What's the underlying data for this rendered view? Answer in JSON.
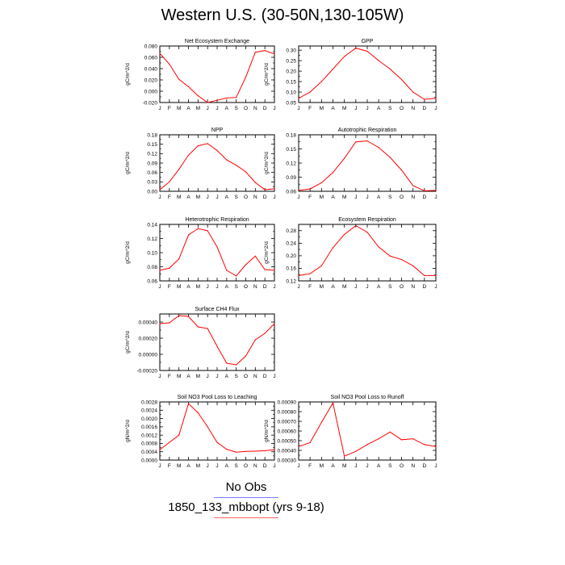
{
  "title": "Western U.S. (30-50N,130-105W)",
  "legend": {
    "obs_label": "No Obs",
    "run_label": "1850_133_mbbopt (yrs 9-18)",
    "obs_color": "#7a7aff",
    "run_color": "#ff0000"
  },
  "chart_data": [
    {
      "type": "line",
      "title": "Net Ecosystem Exchange",
      "ylabel": "gC/m^2/d",
      "categories": [
        "J",
        "F",
        "M",
        "A",
        "M",
        "J",
        "J",
        "A",
        "S",
        "O",
        "N",
        "D",
        "J"
      ],
      "ylim": [
        -0.02,
        0.08
      ],
      "yticks": [
        "-0.020",
        "0.000",
        "0.020",
        "0.040",
        "0.060",
        "0.080"
      ],
      "series": [
        {
          "values": [
            0.067,
            0.048,
            0.021,
            0.008,
            -0.008,
            -0.02,
            -0.016,
            -0.012,
            -0.011,
            0.025,
            0.069,
            0.072,
            0.066
          ]
        }
      ]
    },
    {
      "type": "line",
      "title": "GPP",
      "ylabel": "gC/m^2/d",
      "categories": [
        "J",
        "F",
        "M",
        "A",
        "M",
        "J",
        "J",
        "A",
        "S",
        "O",
        "N",
        "D",
        "J"
      ],
      "ylim": [
        0.05,
        0.32
      ],
      "yticks": [
        "0.05",
        "0.10",
        "0.15",
        "0.20",
        "0.25",
        "0.30"
      ],
      "series": [
        {
          "values": [
            0.07,
            0.1,
            0.15,
            0.21,
            0.27,
            0.31,
            0.295,
            0.25,
            0.21,
            0.16,
            0.1,
            0.065,
            0.07
          ]
        }
      ]
    },
    {
      "type": "line",
      "title": "NPP",
      "ylabel": "gC/m^2/d",
      "categories": [
        "J",
        "F",
        "M",
        "A",
        "M",
        "J",
        "J",
        "A",
        "S",
        "O",
        "N",
        "D",
        "J"
      ],
      "ylim": [
        0.0,
        0.18
      ],
      "yticks": [
        "0.00",
        "0.03",
        "0.06",
        "0.09",
        "0.12",
        "0.15",
        "0.18"
      ],
      "series": [
        {
          "values": [
            0.005,
            0.03,
            0.07,
            0.115,
            0.145,
            0.152,
            0.13,
            0.1,
            0.083,
            0.062,
            0.028,
            0.005,
            0.008
          ]
        }
      ]
    },
    {
      "type": "line",
      "title": "Autotrophic Respiration",
      "ylabel": "gC/m^2/d",
      "categories": [
        "J",
        "F",
        "M",
        "A",
        "M",
        "J",
        "J",
        "A",
        "S",
        "O",
        "N",
        "D",
        "J"
      ],
      "ylim": [
        0.06,
        0.18
      ],
      "yticks": [
        "0.06",
        "0.09",
        "0.12",
        "0.15",
        "0.18"
      ],
      "series": [
        {
          "values": [
            0.062,
            0.065,
            0.078,
            0.1,
            0.13,
            0.165,
            0.167,
            0.153,
            0.132,
            0.105,
            0.072,
            0.061,
            0.062
          ]
        }
      ]
    },
    {
      "type": "line",
      "title": "Heterotrophic Respiration",
      "ylabel": "gC/m^2/d",
      "categories": [
        "J",
        "F",
        "M",
        "A",
        "M",
        "J",
        "J",
        "A",
        "S",
        "O",
        "N",
        "D",
        "J"
      ],
      "ylim": [
        0.06,
        0.14
      ],
      "yticks": [
        "0.06",
        "0.08",
        "0.10",
        "0.12",
        "0.14"
      ],
      "series": [
        {
          "values": [
            0.075,
            0.078,
            0.091,
            0.125,
            0.134,
            0.131,
            0.108,
            0.075,
            0.067,
            0.083,
            0.095,
            0.076,
            0.075
          ]
        }
      ]
    },
    {
      "type": "line",
      "title": "Ecosystem Respiration",
      "ylabel": "gC/m^2/d",
      "categories": [
        "J",
        "F",
        "M",
        "A",
        "M",
        "J",
        "J",
        "A",
        "S",
        "O",
        "N",
        "D",
        "J"
      ],
      "ylim": [
        0.12,
        0.3
      ],
      "yticks": [
        "0.12",
        "0.16",
        "0.20",
        "0.24",
        "0.28"
      ],
      "series": [
        {
          "values": [
            0.137,
            0.143,
            0.168,
            0.226,
            0.268,
            0.296,
            0.275,
            0.228,
            0.199,
            0.188,
            0.168,
            0.137,
            0.137
          ]
        }
      ]
    },
    {
      "type": "line",
      "title": "Surface CH4 Flux",
      "ylabel": "gC/m^2/d",
      "categories": [
        "J",
        "F",
        "M",
        "A",
        "M",
        "J",
        "J",
        "A",
        "S",
        "O",
        "N",
        "D",
        "J"
      ],
      "ylim": [
        -0.0002,
        0.0005
      ],
      "yticks": [
        "-0.00020",
        "0.00000",
        "0.00020",
        "0.00040"
      ],
      "series": [
        {
          "values": [
            0.00038,
            0.00039,
            0.00048,
            0.00047,
            0.00034,
            0.00032,
            0.0001,
            -0.00011,
            -0.00013,
            -2e-05,
            0.00018,
            0.00026,
            0.00038
          ]
        }
      ]
    },
    {
      "type": "line",
      "title": "Soil NO3 Pool Loss to Leaching",
      "ylabel": "gN/m^2/d",
      "categories": [
        "J",
        "F",
        "M",
        "A",
        "M",
        "J",
        "J",
        "A",
        "S",
        "O",
        "N",
        "D",
        "J"
      ],
      "ylim": [
        0.0,
        0.0028
      ],
      "yticks": [
        "0.0000",
        "0.0004",
        "0.0008",
        "0.0012",
        "0.0016",
        "0.0020",
        "0.0024",
        "0.0028"
      ],
      "series": [
        {
          "values": [
            0.0005,
            0.00085,
            0.0012,
            0.00272,
            0.00228,
            0.0016,
            0.00085,
            0.00052,
            0.00038,
            0.00042,
            0.00043,
            0.00045,
            0.0005
          ]
        }
      ]
    },
    {
      "type": "line",
      "title": "Soil NO3 Pool Loss to Runoff",
      "ylabel": "gN/m^2/d",
      "categories": [
        "J",
        "F",
        "M",
        "A",
        "M",
        "J",
        "J",
        "A",
        "S",
        "O",
        "N",
        "D",
        "J"
      ],
      "ylim": [
        0.0003,
        0.0009
      ],
      "yticks": [
        "0.00030",
        "0.00040",
        "0.00050",
        "0.00060",
        "0.00070",
        "0.00080",
        "0.00090"
      ],
      "series": [
        {
          "values": [
            0.00044,
            0.00048,
            0.00069,
            0.00089,
            0.00034,
            0.00039,
            0.00046,
            0.00052,
            0.00059,
            0.00051,
            0.00052,
            0.00046,
            0.00044
          ]
        }
      ]
    }
  ]
}
